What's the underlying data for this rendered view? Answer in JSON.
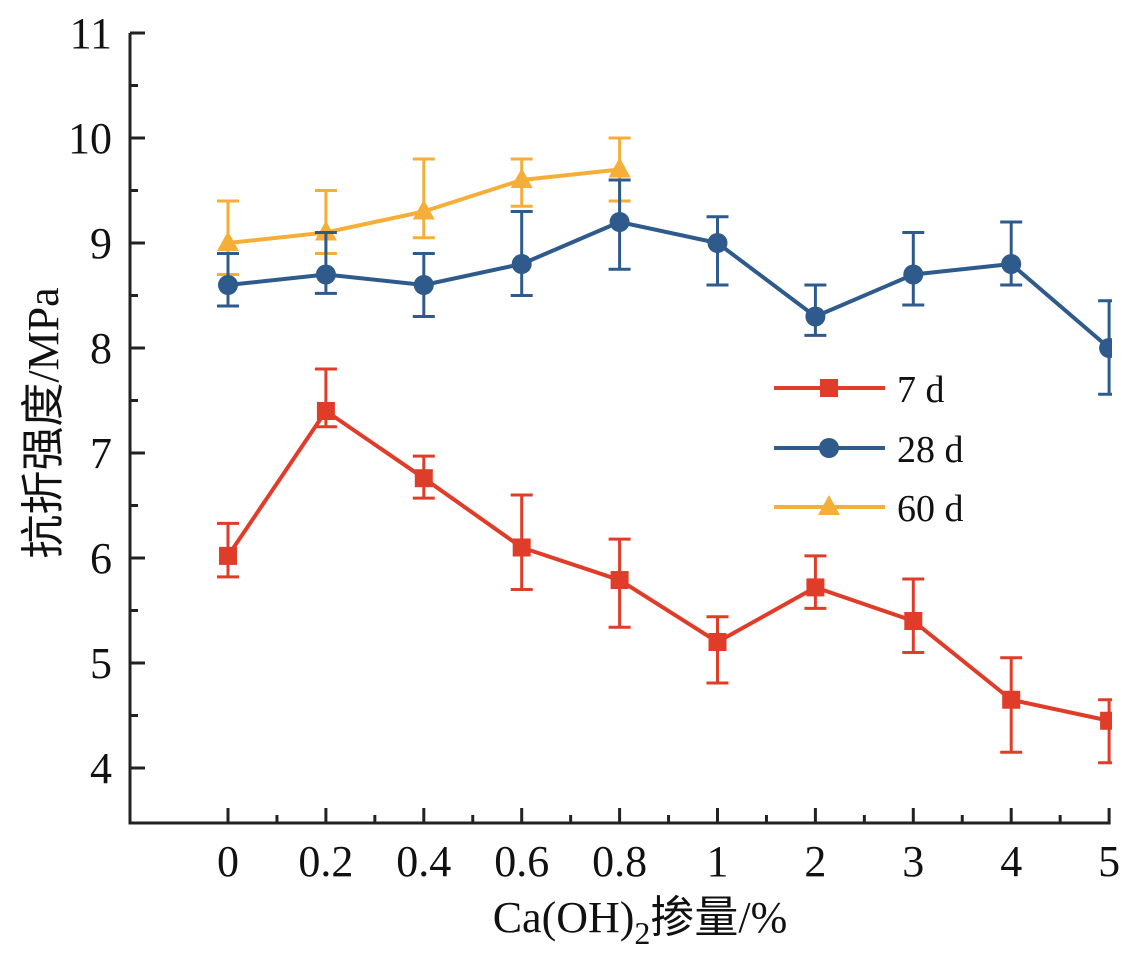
{
  "chart_data": {
    "type": "line",
    "title": "",
    "xlabel": "Ca(OH)2掺量/%",
    "xlabel_parts": {
      "main": "Ca(OH)",
      "sub": "2",
      "rest": "掺量/%"
    },
    "ylabel": "抗折强度/MPa",
    "x_scale": "categorical",
    "categories": [
      "0",
      "0.2",
      "0.4",
      "0.6",
      "0.8",
      "1",
      "2",
      "3",
      "4",
      "5"
    ],
    "ylim": [
      3.5,
      11
    ],
    "yticks": [
      4,
      5,
      6,
      7,
      8,
      9,
      10,
      11
    ],
    "ytick_labels": [
      "4",
      "5",
      "6",
      "7",
      "8",
      "9",
      "10",
      "11"
    ],
    "y_minor_step": 0.5,
    "grid": false,
    "legend_position": "center-right",
    "series": [
      {
        "name": "7 d",
        "color": "#e03c2a",
        "marker": "square",
        "values": [
          6.02,
          7.4,
          6.76,
          6.1,
          5.79,
          5.2,
          5.72,
          5.4,
          4.65,
          4.45
        ],
        "err_low": [
          5.82,
          7.25,
          6.57,
          5.7,
          5.34,
          4.81,
          5.52,
          5.1,
          4.15,
          4.05
        ],
        "err_high": [
          6.33,
          7.8,
          6.97,
          6.6,
          6.18,
          5.44,
          6.02,
          5.8,
          5.05,
          4.65
        ]
      },
      {
        "name": "28 d",
        "color": "#2f5a8c",
        "marker": "circle",
        "values": [
          8.6,
          8.7,
          8.6,
          8.8,
          9.2,
          9.0,
          8.3,
          8.7,
          8.8,
          8.0
        ],
        "err_low": [
          8.4,
          8.52,
          8.3,
          8.5,
          8.75,
          8.6,
          8.12,
          8.41,
          8.6,
          7.56
        ],
        "err_high": [
          8.9,
          9.1,
          8.9,
          9.3,
          9.6,
          9.25,
          8.6,
          9.1,
          9.2,
          8.45
        ]
      },
      {
        "name": "60 d",
        "color": "#f5ae38",
        "marker": "triangle",
        "values": [
          9.0,
          9.1,
          9.3,
          9.6,
          9.7
        ],
        "err_low": [
          8.7,
          8.9,
          9.05,
          9.35,
          9.4
        ],
        "err_high": [
          9.4,
          9.5,
          9.8,
          9.8,
          10.0
        ]
      }
    ]
  }
}
